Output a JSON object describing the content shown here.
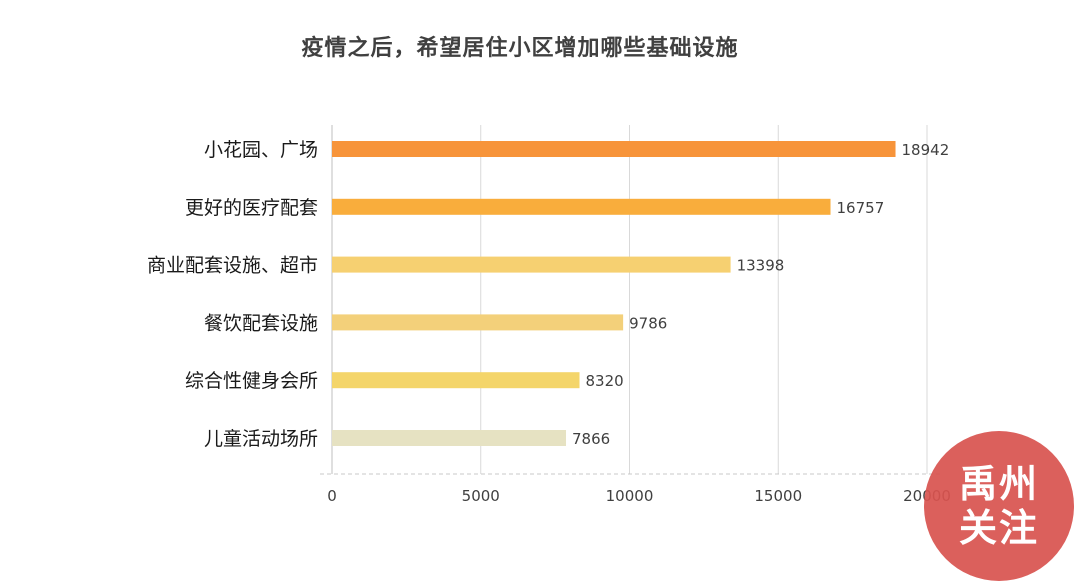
{
  "chart_data": {
    "type": "bar",
    "orientation": "horizontal",
    "title": "疫情之后，希望居住小区增加哪些基础设施",
    "categories": [
      "小花园、广场",
      "更好的医疗配套",
      "商业配套设施、超市",
      "餐饮配套设施",
      "综合性健身会所",
      "儿童活动场所"
    ],
    "values": [
      18942,
      16757,
      13398,
      9786,
      8320,
      7866
    ],
    "bar_colors": [
      "#f7943a",
      "#f9ad3c",
      "#f6d071",
      "#f3d07a",
      "#f4d56a",
      "#e6e2c2"
    ],
    "xlim": [
      0,
      20000
    ],
    "xticks": [
      0,
      5000,
      10000,
      15000,
      20000
    ],
    "xtick_labels": [
      "0",
      "5000",
      "10000",
      "15000",
      "20000"
    ],
    "grid": "vertical",
    "legend": "none"
  },
  "watermark": {
    "line1": "禹州",
    "line2": "关注",
    "color": "#d9534f"
  }
}
